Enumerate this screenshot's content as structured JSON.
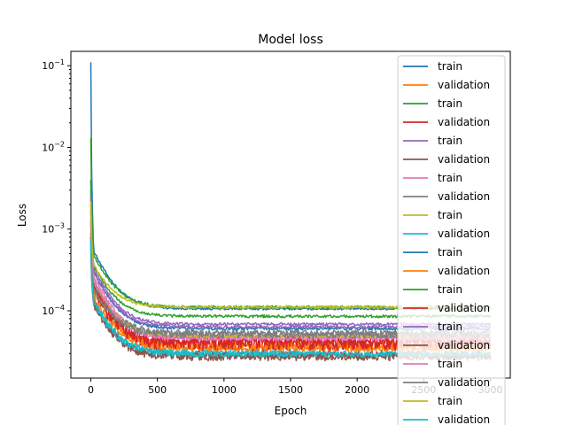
{
  "chart_data": {
    "type": "line",
    "title": "Model loss",
    "xlabel": "Epoch",
    "ylabel": "Loss",
    "xlim": [
      -150,
      3150
    ],
    "ylim": [
      1.5e-05,
      0.15
    ],
    "yscale": "log",
    "xticks": [
      0,
      500,
      1000,
      1500,
      2000,
      2500,
      3000
    ],
    "xtick_labels": [
      "0",
      "500",
      "1000",
      "1500",
      "2000",
      "2500",
      "3000"
    ],
    "yticks": [
      0.1,
      0.01,
      0.001,
      0.0001
    ],
    "ytick_base": "10",
    "ytick_exponents": [
      "−1",
      "−2",
      "−3",
      "−4"
    ],
    "legend_position": "right",
    "series": [
      {
        "name": "train",
        "color": "#1f77b4",
        "start": 0.11,
        "knee": 0.00018,
        "plateau": 0.000105,
        "end": 3000,
        "noise": 0.03
      },
      {
        "name": "validation",
        "color": "#ff7f0e",
        "start": 0.0008,
        "knee": 5e-05,
        "plateau": 3.4e-05,
        "end": 3000,
        "noise": 0.12
      },
      {
        "name": "train",
        "color": "#2ca02c",
        "start": 0.013,
        "knee": 0.00016,
        "plateau": 0.00011,
        "end": 3000,
        "noise": 0.04
      },
      {
        "name": "validation",
        "color": "#d62728",
        "start": 0.0017,
        "knee": 7e-05,
        "plateau": 3.8e-05,
        "end": 3000,
        "noise": 0.2
      },
      {
        "name": "train",
        "color": "#9467bd",
        "start": 0.004,
        "knee": 0.00011,
        "plateau": 6.8e-05,
        "end": 3000,
        "noise": 0.04
      },
      {
        "name": "validation",
        "color": "#8c564b",
        "start": 0.0006,
        "knee": 4e-05,
        "plateau": 2.8e-05,
        "end": 3000,
        "noise": 0.12
      },
      {
        "name": "train",
        "color": "#e377c2",
        "start": 0.002,
        "knee": 9e-05,
        "plateau": 4.8e-05,
        "end": 3000,
        "noise": 0.05
      },
      {
        "name": "validation",
        "color": "#7f7f7f",
        "start": 0.0009,
        "knee": 7e-05,
        "plateau": 5.2e-05,
        "end": 3000,
        "noise": 0.1
      },
      {
        "name": "train",
        "color": "#bcbd22",
        "start": 0.0025,
        "knee": 8e-05,
        "plateau": 4.8e-05,
        "end": 3000,
        "noise": 0.04
      },
      {
        "name": "validation",
        "color": "#17becf",
        "start": 0.0007,
        "knee": 4.5e-05,
        "plateau": 3e-05,
        "end": 1750,
        "noise": 0.08
      },
      {
        "name": "train",
        "color": "#1f77b4",
        "start": 0.003,
        "knee": 0.0001,
        "plateau": 6e-05,
        "end": 3000,
        "noise": 0.04
      },
      {
        "name": "validation",
        "color": "#ff7f0e",
        "start": 0.0012,
        "knee": 6e-05,
        "plateau": 3.6e-05,
        "end": 3000,
        "noise": 0.12
      },
      {
        "name": "train",
        "color": "#2ca02c",
        "start": 0.004,
        "knee": 0.00012,
        "plateau": 8.5e-05,
        "end": 3000,
        "noise": 0.04
      },
      {
        "name": "validation",
        "color": "#d62728",
        "start": 0.0013,
        "knee": 6e-05,
        "plateau": 3.9e-05,
        "end": 3000,
        "noise": 0.18
      },
      {
        "name": "train",
        "color": "#9467bd",
        "start": 0.0025,
        "knee": 0.0001,
        "plateau": 6.3e-05,
        "end": 3000,
        "noise": 0.04
      },
      {
        "name": "validation",
        "color": "#8c564b",
        "start": 0.0008,
        "knee": 4e-05,
        "plateau": 2.7e-05,
        "end": 3000,
        "noise": 0.12
      },
      {
        "name": "train",
        "color": "#e377c2",
        "start": 0.0018,
        "knee": 8e-05,
        "plateau": 4.5e-05,
        "end": 3000,
        "noise": 0.05
      },
      {
        "name": "validation",
        "color": "#7f7f7f",
        "start": 0.0009,
        "knee": 6e-05,
        "plateau": 5e-05,
        "end": 3000,
        "noise": 0.1
      },
      {
        "name": "train",
        "color": "#bcbd22",
        "start": 0.0022,
        "knee": 0.00012,
        "plateau": 0.00011,
        "end": 3000,
        "noise": 0.04
      },
      {
        "name": "validation",
        "color": "#17becf",
        "start": 0.0007,
        "knee": 4.2e-05,
        "plateau": 2.9e-05,
        "end": 3000,
        "noise": 0.08
      }
    ]
  }
}
